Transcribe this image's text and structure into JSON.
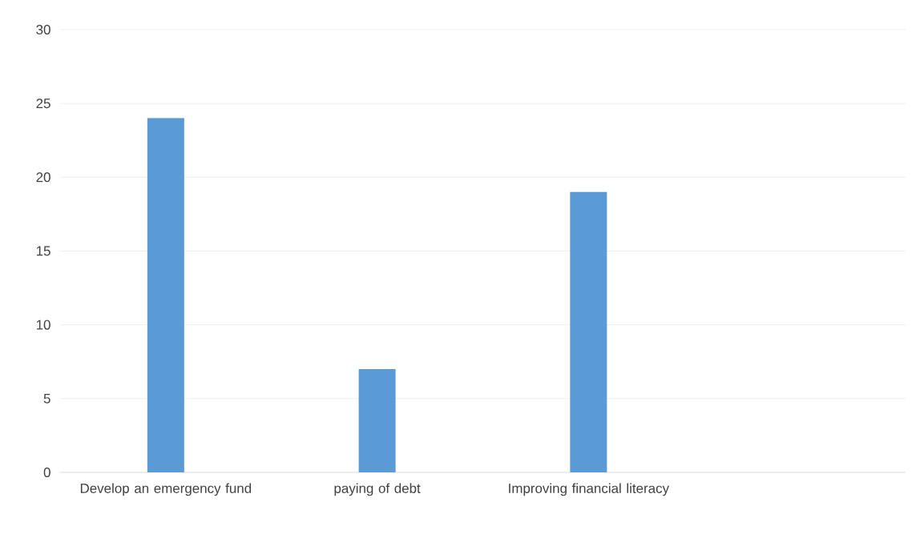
{
  "chart_data": {
    "type": "bar",
    "categories": [
      "Develop an emergency fund",
      "paying of debt",
      "Improving financial literacy",
      null
    ],
    "values": [
      24,
      7,
      19,
      null
    ],
    "color": "#5b9bd5",
    "ylim": [
      0,
      30
    ],
    "yticks": [
      0,
      5,
      10,
      15,
      20,
      25,
      30
    ],
    "grid": "y"
  }
}
